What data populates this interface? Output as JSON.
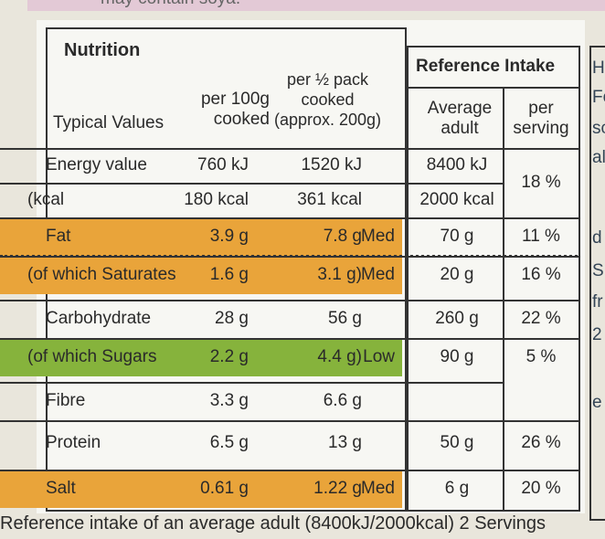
{
  "top_text": "may contain soya.",
  "side_text": [
    "H",
    "Fo",
    "sc",
    "al",
    "d",
    "S",
    "fr",
    "2",
    "e"
  ],
  "header": {
    "title": "Nutrition",
    "typical": "Typical Values",
    "per100g": "per 100g cooked",
    "perhalf": "per ½ pack cooked (approx. 200g)",
    "ri_title": "Reference Intake",
    "ri_adult": "Average adult",
    "ri_serving": "per serving"
  },
  "table": {
    "rows": [
      {
        "label": "Energy value",
        "per100g": "760 kJ",
        "perhalf": "1520 kJ",
        "ri": "8400 kJ",
        "serving": "18 %"
      },
      {
        "label": "(kcal",
        "per100g": "180 kcal",
        "perhalf": "361 kcal",
        "ri": "2000 kcal"
      },
      {
        "label": "Fat",
        "per100g": "3.9 g",
        "perhalf": "7.8 g",
        "level": "Med",
        "ri": "70 g",
        "serving": "11 %",
        "color": "#e9a43a"
      },
      {
        "label": "(of which Saturates",
        "per100g": "1.6 g",
        "perhalf": "3.1 g)",
        "level": "Med",
        "ri": "20 g",
        "serving": "16 %",
        "color": "#e9a43a"
      },
      {
        "label": "Carbohydrate",
        "per100g": "28 g",
        "perhalf": "56 g",
        "ri": "260 g",
        "serving": "22 %"
      },
      {
        "label": "(of which Sugars",
        "per100g": "2.2 g",
        "perhalf": "4.4 g)",
        "level": "Low",
        "ri": "90 g",
        "serving": "5 %",
        "color": "#86b33c"
      },
      {
        "label": "Fibre",
        "per100g": "3.3 g",
        "perhalf": "6.6 g"
      },
      {
        "label": "Protein",
        "per100g": "6.5 g",
        "perhalf": "13 g",
        "ri": "50 g",
        "serving": "26 %"
      },
      {
        "label": "Salt",
        "per100g": "0.61 g",
        "perhalf": "1.22 g",
        "level": "Med",
        "ri": "6 g",
        "serving": "20 %",
        "color": "#e9a43a"
      }
    ]
  },
  "footer": "Reference intake of an average adult (8400kJ/2000kcal) 2 Servings"
}
